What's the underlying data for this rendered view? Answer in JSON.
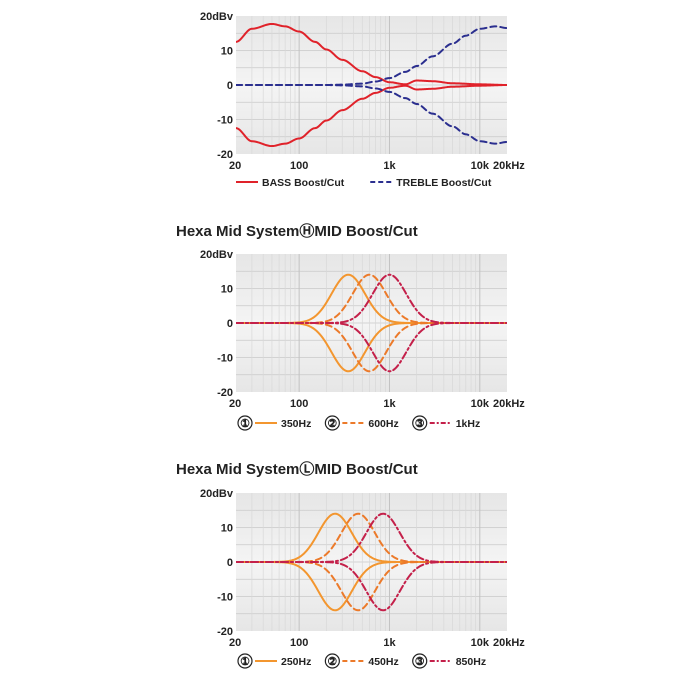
{
  "chart_data": [
    {
      "type": "line",
      "title": "",
      "x_scale": "log",
      "xlim": [
        20,
        20000
      ],
      "ylim": [
        -20,
        20
      ],
      "x_ticks": [
        {
          "v": 20,
          "label": "20"
        },
        {
          "v": 100,
          "label": "100"
        },
        {
          "v": 1000,
          "label": "1k"
        },
        {
          "v": 10000,
          "label": "10k"
        },
        {
          "v": 20000,
          "label": "20kHz"
        }
      ],
      "y_ticks": [
        {
          "v": 20,
          "label": "20dBv"
        },
        {
          "v": 10,
          "label": "10"
        },
        {
          "v": 0,
          "label": "0"
        },
        {
          "v": -10,
          "label": "-10"
        },
        {
          "v": -20,
          "label": "-20"
        }
      ],
      "grid": true,
      "legend_position": "bottom",
      "series": [
        {
          "name": "BASS Boost/Cut",
          "color": "#e0222a",
          "dash": "solid",
          "x": [
            20,
            30,
            50,
            70,
            100,
            150,
            200,
            300,
            500,
            700,
            1000,
            1500,
            2000,
            3000,
            5000,
            10000,
            20000
          ],
          "y": [
            12.5,
            16.3,
            17.7,
            17.0,
            15.5,
            12.5,
            10.3,
            7.3,
            4.0,
            2.3,
            0.8,
            0.2,
            1.3,
            1.1,
            0.5,
            0.2,
            0
          ],
          "y_cut": [
            -12.5,
            -16.3,
            -17.7,
            -17.0,
            -15.5,
            -12.5,
            -10.3,
            -7.3,
            -4.0,
            -2.3,
            -0.8,
            -0.2,
            -1.3,
            -1.1,
            -0.5,
            -0.2,
            0
          ]
        },
        {
          "name": "TREBLE Boost/Cut",
          "color": "#2b2f8f",
          "dash": "dashed",
          "x": [
            20,
            100,
            200,
            300,
            500,
            700,
            1000,
            1500,
            2000,
            3000,
            5000,
            7000,
            10000,
            15000,
            20000
          ],
          "y": [
            0,
            0,
            0,
            0.1,
            0.4,
            1.0,
            2.0,
            3.8,
            5.5,
            8.3,
            12.0,
            14.3,
            16.3,
            17.0,
            16.5
          ],
          "y_cut": [
            0,
            0,
            0,
            -0.1,
            -0.4,
            -1.0,
            -2.0,
            -3.8,
            -5.5,
            -8.3,
            -12.0,
            -14.3,
            -16.3,
            -17.0,
            -16.5
          ]
        }
      ]
    },
    {
      "type": "line",
      "title": "Hexa Mid SystemⒽMID Boost/Cut",
      "x_scale": "log",
      "xlim": [
        20,
        20000
      ],
      "ylim": [
        -20,
        20
      ],
      "x_ticks": [
        {
          "v": 20,
          "label": "20"
        },
        {
          "v": 100,
          "label": "100"
        },
        {
          "v": 1000,
          "label": "1k"
        },
        {
          "v": 10000,
          "label": "10k"
        },
        {
          "v": 20000,
          "label": "20kHz"
        }
      ],
      "y_ticks": [
        {
          "v": 20,
          "label": "20dBv"
        },
        {
          "v": 10,
          "label": "10"
        },
        {
          "v": 0,
          "label": "0"
        },
        {
          "v": -10,
          "label": "-10"
        },
        {
          "v": -20,
          "label": "-20"
        }
      ],
      "grid": true,
      "legend_position": "bottom",
      "series": [
        {
          "name": "350Hz",
          "marker": "①",
          "color": "#f3962f",
          "dash": "solid",
          "center": 350,
          "gain": 14,
          "bandwidth_octaves": 1.35
        },
        {
          "name": "600Hz",
          "marker": "②",
          "color": "#ec7a2a",
          "dash": "dashed",
          "center": 600,
          "gain": 14,
          "bandwidth_octaves": 1.35
        },
        {
          "name": "1kHz",
          "marker": "③",
          "color": "#c4204a",
          "dash": "dashdot",
          "center": 1000,
          "gain": 14,
          "bandwidth_octaves": 1.35
        }
      ]
    },
    {
      "type": "line",
      "title": "Hexa Mid SystemⓁMID Boost/Cut",
      "x_scale": "log",
      "xlim": [
        20,
        20000
      ],
      "ylim": [
        -20,
        20
      ],
      "x_ticks": [
        {
          "v": 20,
          "label": "20"
        },
        {
          "v": 100,
          "label": "100"
        },
        {
          "v": 1000,
          "label": "1k"
        },
        {
          "v": 10000,
          "label": "10k"
        },
        {
          "v": 20000,
          "label": "20kHz"
        }
      ],
      "y_ticks": [
        {
          "v": 20,
          "label": "20dBv"
        },
        {
          "v": 10,
          "label": "10"
        },
        {
          "v": 0,
          "label": "0"
        },
        {
          "v": -10,
          "label": "-10"
        },
        {
          "v": -20,
          "label": "-20"
        }
      ],
      "grid": true,
      "legend_position": "bottom",
      "series": [
        {
          "name": "250Hz",
          "marker": "①",
          "color": "#f3962f",
          "dash": "solid",
          "center": 250,
          "gain": 14,
          "bandwidth_octaves": 1.35
        },
        {
          "name": "450Hz",
          "marker": "②",
          "color": "#ec7a2a",
          "dash": "dashed",
          "center": 450,
          "gain": 14,
          "bandwidth_octaves": 1.35
        },
        {
          "name": "850Hz",
          "marker": "③",
          "color": "#c4204a",
          "dash": "dashdot",
          "center": 850,
          "gain": 14,
          "bandwidth_octaves": 1.35
        }
      ]
    }
  ]
}
